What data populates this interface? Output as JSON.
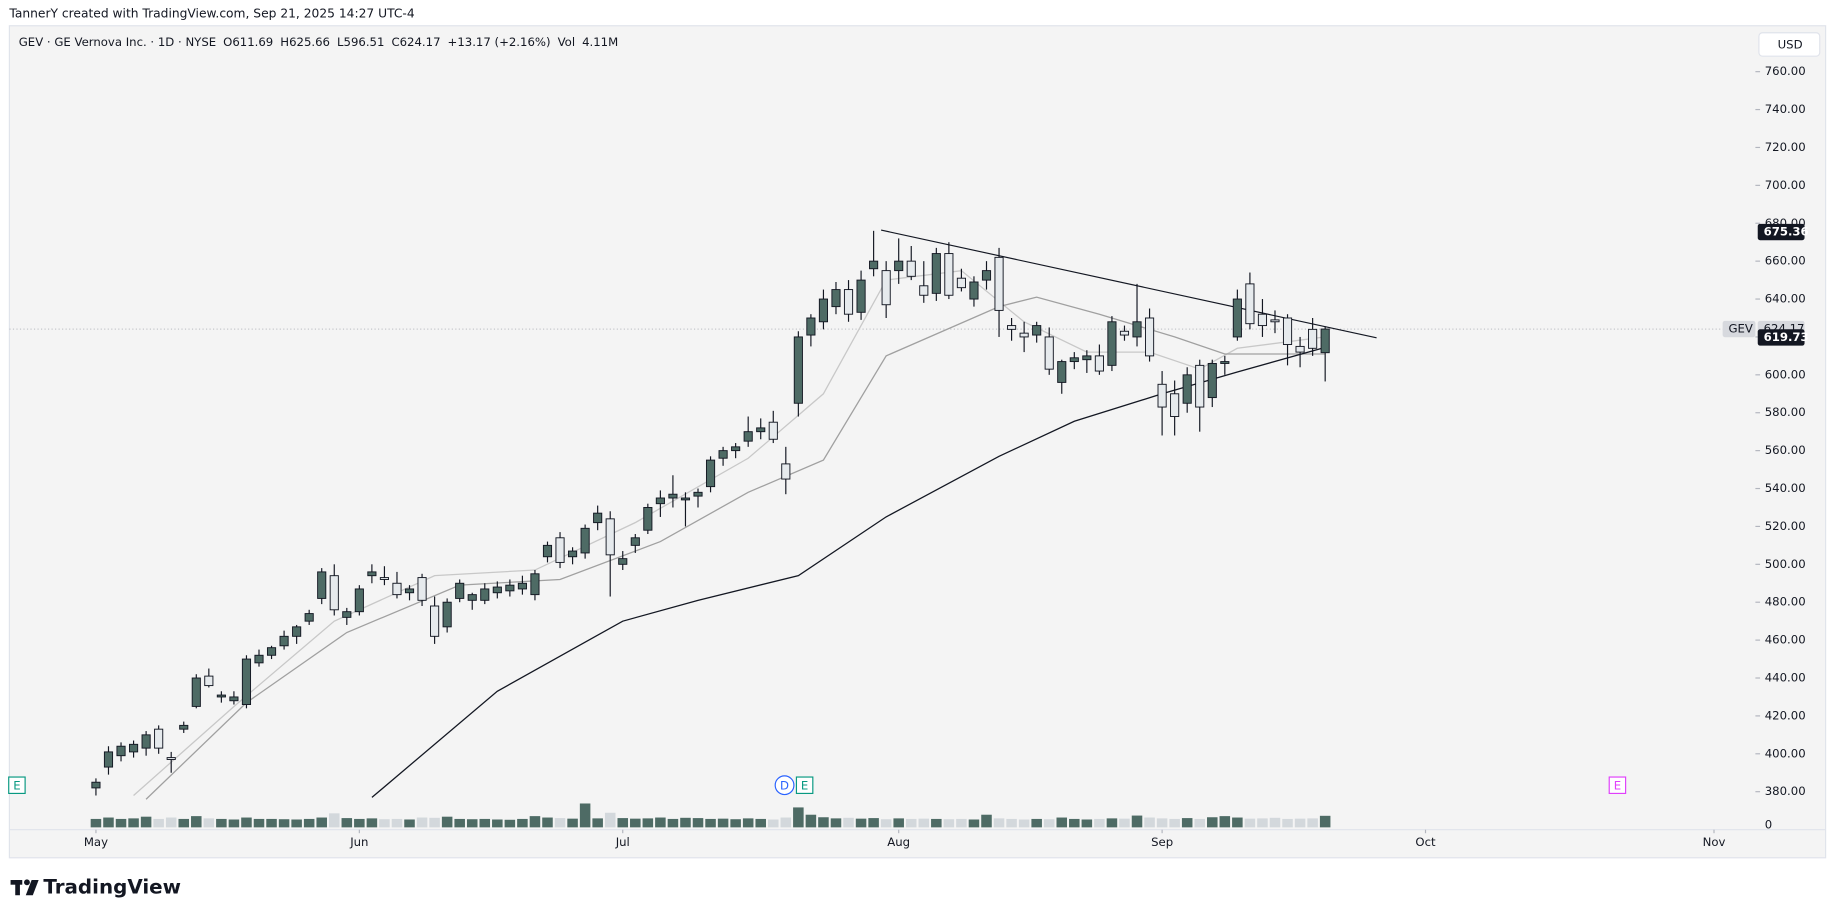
{
  "header": "TannerY created with TradingView.com, Sep 21, 2025 14:27 UTC-4",
  "brand": "TradingView",
  "currency_button": "USD",
  "chart_data": {
    "type": "candlestick",
    "legend_items": [
      "GEV · GE Vernova Inc. · 1D · NYSE",
      "O",
      "611.69",
      "H",
      "625.66",
      "L",
      "596.51",
      "C",
      "624.17",
      "+13.17 (+2.16%)",
      "Vol",
      "4.11M"
    ],
    "up_color": "#4e6b65",
    "down_color": "#e6eaed",
    "xlim": [
      -6.9,
      132.3
    ],
    "xticks": [
      {
        "value": 0,
        "label": "May"
      },
      {
        "value": 21,
        "label": "Jun"
      },
      {
        "value": 42,
        "label": "Jul"
      },
      {
        "value": 64,
        "label": "Aug"
      },
      {
        "value": 85,
        "label": "Sep"
      },
      {
        "value": 106,
        "label": "Oct"
      },
      {
        "value": 129,
        "label": "Nov"
      }
    ],
    "ylim": [
      376,
      783
    ],
    "yticks": [
      {
        "value": 380,
        "label": "380.00"
      },
      {
        "value": 400,
        "label": "400.00"
      },
      {
        "value": 420,
        "label": "420.00"
      },
      {
        "value": 440,
        "label": "440.00"
      },
      {
        "value": 460,
        "label": "460.00"
      },
      {
        "value": 480,
        "label": "480.00"
      },
      {
        "value": 500,
        "label": "500.00"
      },
      {
        "value": 520,
        "label": "520.00"
      },
      {
        "value": 540,
        "label": "540.00"
      },
      {
        "value": 560,
        "label": "560.00"
      },
      {
        "value": 580,
        "label": "580.00"
      },
      {
        "value": 600,
        "label": "600.00"
      },
      {
        "value": 620,
        "label": "620.00"
      },
      {
        "value": 640,
        "label": "640.00"
      },
      {
        "value": 660,
        "label": "660.00"
      },
      {
        "value": 680,
        "label": "680.00"
      },
      {
        "value": 700,
        "label": "700.00"
      },
      {
        "value": 720,
        "label": "720.00"
      },
      {
        "value": 740,
        "label": "740.00"
      },
      {
        "value": 760,
        "label": "760.00"
      }
    ],
    "candles": [
      [
        382,
        387,
        378,
        385
      ],
      [
        393,
        404,
        389,
        401
      ],
      [
        399,
        406,
        396,
        404
      ],
      [
        401,
        407,
        398,
        405
      ],
      [
        403,
        412,
        399,
        410
      ],
      [
        413,
        415,
        400,
        403
      ],
      [
        398,
        401,
        390,
        397
      ],
      [
        413,
        417,
        411,
        415
      ],
      [
        425,
        442,
        424,
        440
      ],
      [
        441,
        445,
        435,
        436
      ],
      [
        430,
        433,
        427,
        431
      ],
      [
        428,
        433,
        426,
        430
      ],
      [
        426,
        452,
        424,
        450
      ],
      [
        448,
        455,
        446,
        452
      ],
      [
        452,
        457,
        450,
        456
      ],
      [
        457,
        465,
        455,
        462
      ],
      [
        462,
        468,
        458,
        467
      ],
      [
        470,
        476,
        468,
        474
      ],
      [
        482,
        498,
        479,
        496
      ],
      [
        494,
        500,
        473,
        476
      ],
      [
        472,
        477,
        468,
        475
      ],
      [
        475,
        489,
        473,
        487
      ],
      [
        494,
        500,
        490,
        496
      ],
      [
        493,
        499,
        489,
        492
      ],
      [
        490,
        496,
        482,
        484
      ],
      [
        485,
        489,
        481,
        487
      ],
      [
        493,
        495,
        478,
        481
      ],
      [
        478,
        483,
        458,
        462
      ],
      [
        467,
        482,
        464,
        480
      ],
      [
        482,
        492,
        480,
        490
      ],
      [
        481,
        485,
        476,
        484
      ],
      [
        481,
        490,
        479,
        487
      ],
      [
        485,
        491,
        482,
        488
      ],
      [
        486,
        492,
        483,
        489
      ],
      [
        487,
        494,
        484,
        490
      ],
      [
        484,
        497,
        481,
        495
      ],
      [
        504,
        512,
        501,
        510
      ],
      [
        514,
        517,
        498,
        501
      ],
      [
        504,
        509,
        500,
        507
      ],
      [
        506,
        521,
        503,
        519
      ],
      [
        522,
        531,
        518,
        527
      ],
      [
        524,
        528,
        483,
        505
      ],
      [
        500,
        507,
        497,
        503
      ],
      [
        510,
        516,
        506,
        514
      ],
      [
        518,
        532,
        516,
        530
      ],
      [
        532,
        539,
        525,
        535
      ],
      [
        535,
        547,
        530,
        537
      ],
      [
        534,
        538,
        520,
        535
      ],
      [
        536,
        540,
        530,
        538
      ],
      [
        541,
        557,
        538,
        555
      ],
      [
        556,
        562,
        552,
        560
      ],
      [
        560,
        564,
        556,
        562
      ],
      [
        565,
        578,
        562,
        570
      ],
      [
        570,
        577,
        566,
        572
      ],
      [
        575,
        581,
        564,
        566
      ],
      [
        553,
        562,
        537,
        545
      ],
      [
        585,
        623,
        578,
        620
      ],
      [
        621,
        632,
        615,
        630
      ],
      [
        628,
        645,
        624,
        640
      ],
      [
        636,
        649,
        632,
        645
      ],
      [
        645,
        650,
        628,
        632
      ],
      [
        633,
        655,
        629,
        650
      ],
      [
        656,
        676,
        652,
        660
      ],
      [
        655,
        660,
        630,
        637
      ],
      [
        655,
        672,
        648,
        660
      ],
      [
        660,
        668,
        650,
        652
      ],
      [
        647,
        660,
        638,
        642
      ],
      [
        643,
        667,
        639,
        664
      ],
      [
        664,
        670,
        640,
        642
      ],
      [
        651,
        656,
        644,
        646
      ],
      [
        640,
        652,
        636,
        649
      ],
      [
        650,
        660,
        645,
        655
      ],
      [
        662,
        667,
        620,
        634
      ],
      [
        626,
        630,
        618,
        624
      ],
      [
        622,
        628,
        612,
        620
      ],
      [
        621,
        628,
        617,
        626
      ],
      [
        620,
        625,
        600,
        603
      ],
      [
        596,
        608,
        590,
        607
      ],
      [
        607,
        612,
        603,
        609
      ],
      [
        608,
        613,
        601,
        610
      ],
      [
        610,
        616,
        600,
        602
      ],
      [
        605,
        631,
        602,
        628
      ],
      [
        623,
        626,
        618,
        621
      ],
      [
        620,
        648,
        615,
        628
      ],
      [
        630,
        635,
        607,
        610
      ],
      [
        595,
        602,
        568,
        583
      ],
      [
        590,
        597,
        568,
        578
      ],
      [
        585,
        604,
        580,
        600
      ],
      [
        605,
        608,
        570,
        583
      ],
      [
        588,
        608,
        583,
        606
      ],
      [
        606,
        610,
        600,
        607
      ],
      [
        620,
        645,
        618,
        640
      ],
      [
        648,
        654,
        624,
        627
      ],
      [
        632,
        640,
        620,
        626
      ],
      [
        629,
        634,
        622,
        628
      ],
      [
        630,
        632,
        605,
        616
      ],
      [
        615,
        620,
        604,
        612
      ],
      [
        624,
        630,
        610,
        614
      ],
      [
        611.69,
        625.66,
        596.51,
        624.17
      ]
    ],
    "volume": {
      "ylim": [
        0,
        10
      ],
      "yticks": [
        0
      ],
      "values": [
        3,
        3.5,
        3,
        3.2,
        3.8,
        3,
        3.5,
        3,
        4,
        3.2,
        3,
        2.8,
        3.5,
        3,
        3,
        2.9,
        2.8,
        3,
        3.5,
        5,
        3.3,
        3,
        3.2,
        2.9,
        3,
        2.8,
        3.5,
        3.4,
        3.8,
        3,
        2.9,
        3,
        2.8,
        2.7,
        3,
        4,
        3.5,
        3.3,
        3.1,
        8.5,
        3.2,
        5.2,
        3.3,
        3.1,
        3.2,
        3.5,
        3,
        3.4,
        3.3,
        3,
        3.1,
        2.9,
        3.2,
        3,
        2.8,
        3.5,
        7.1,
        4.5,
        3.6,
        3.2,
        3.4,
        3.1,
        3.3,
        2.9,
        3.2,
        3,
        3.1,
        3,
        2.9,
        3,
        2.8,
        4.5,
        3.2,
        3,
        2.8,
        3,
        2.9,
        3.5,
        3,
        2.8,
        3,
        3.2,
        3.1,
        4.2,
        3.5,
        3.2,
        3,
        3.3,
        3,
        3.6,
        4,
        3.5,
        3.1,
        3.2,
        3.4,
        3,
        3.1,
        3.2,
        4.11
      ]
    },
    "lines": [
      {
        "color": "#c8c8c8",
        "x": [
          3,
          11,
          19,
          27,
          35,
          43,
          52,
          58,
          63,
          69,
          74,
          79,
          84,
          88,
          91,
          98
        ],
        "values": [
          378,
          425,
          470,
          494,
          497,
          522,
          556,
          590,
          650,
          655,
          628,
          612,
          612,
          603,
          614,
          620
        ]
      },
      {
        "color": "#a0a0a0",
        "x": [
          4,
          12,
          20,
          29,
          37,
          45,
          52,
          58,
          63,
          72,
          75,
          80,
          86,
          90,
          98
        ],
        "values": [
          376,
          427,
          464,
          489,
          492,
          512,
          538,
          555,
          610,
          636,
          641,
          632,
          620,
          611,
          611
        ]
      },
      {
        "color": "#131722",
        "x": [
          22,
          32,
          42,
          48,
          56,
          63,
          72,
          78,
          85,
          91,
          98
        ],
        "values": [
          377,
          433,
          470,
          481,
          494,
          525,
          557,
          575.5,
          590,
          601.5,
          614.5
        ]
      },
      {
        "color": "#131722",
        "x": [
          62.6,
          102.1
        ],
        "values": [
          676.4,
          619.5
        ]
      }
    ],
    "price_labels": [
      {
        "value": 675.36,
        "color": "#131722"
      },
      {
        "value": 624.17,
        "color": "#d7d9de",
        "tag": "GEV"
      },
      {
        "value": 619.73,
        "color": "#131722"
      }
    ],
    "events": [
      {
        "x": -6.3,
        "label": "E",
        "color": "#089981"
      },
      {
        "x": 54.9,
        "label": "D",
        "color": "#2962ff"
      },
      {
        "x": 56.5,
        "label": "E",
        "color": "#089981"
      },
      {
        "x": 121.3,
        "label": "E",
        "color": "#e040fb"
      }
    ]
  }
}
